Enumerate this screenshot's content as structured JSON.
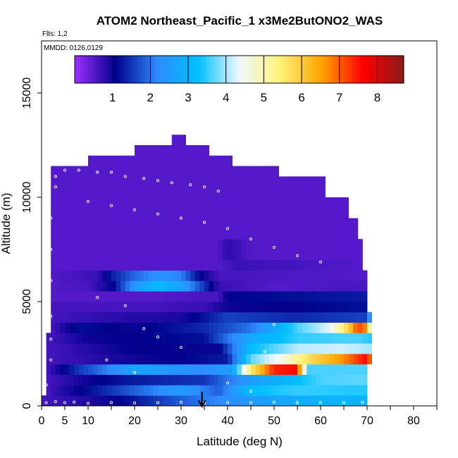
{
  "chart_data": {
    "type": "heatmap",
    "title": "ATOM2 Northeast_Pacific_1 x3Me2ButONO2_WAS",
    "subtitle": "Flts: 1,2",
    "annotation": "MMDD: 0126,0129",
    "xlabel": "Latitude (deg N)",
    "ylabel": "Altitude (m)",
    "xlim": [
      0,
      85
    ],
    "ylim": [
      0,
      17500
    ],
    "x_ticks": [
      0,
      5,
      10,
      20,
      30,
      40,
      50,
      60,
      70,
      80
    ],
    "y_ticks": [
      0,
      5000,
      10000,
      15000
    ],
    "colorbar": {
      "range": [
        0,
        8.7
      ],
      "ticks": [
        1,
        2,
        3,
        4,
        5,
        6,
        7,
        8
      ],
      "placement": "top",
      "colors": [
        "#9b30ff",
        "#00008b",
        "#2e8bff",
        "#00c0ff",
        "#f0f8ff",
        "#fff27a",
        "#ffa500",
        "#ff0000",
        "#8b1a1a"
      ]
    },
    "marker": {
      "x": 34.5,
      "label": "arrow"
    },
    "grid": "off",
    "layers": [
      {
        "ymin": 0,
        "ymax": 500,
        "xmin": 0,
        "xmax": 70,
        "stops": [
          [
            0,
            0.6
          ],
          [
            15,
            1.0
          ],
          [
            30,
            1.8
          ],
          [
            45,
            2.5
          ],
          [
            60,
            3.0
          ],
          [
            70,
            3.0
          ]
        ]
      },
      {
        "ymin": 500,
        "ymax": 1000,
        "xmin": 1,
        "xmax": 70,
        "stops": [
          [
            1,
            0.6
          ],
          [
            15,
            1.5
          ],
          [
            30,
            2.5
          ],
          [
            38,
            1.8
          ],
          [
            45,
            3.2
          ],
          [
            55,
            3.5
          ],
          [
            70,
            3.4
          ]
        ]
      },
      {
        "ymin": 1000,
        "ymax": 1500,
        "xmin": 1,
        "xmax": 70,
        "stops": [
          [
            1,
            0.6
          ],
          [
            10,
            1.0
          ],
          [
            20,
            1.3
          ],
          [
            35,
            1.5
          ],
          [
            45,
            2.5
          ],
          [
            60,
            3.6
          ],
          [
            70,
            3.7
          ]
        ]
      },
      {
        "ymin": 1500,
        "ymax": 2000,
        "xmin": 1,
        "xmax": 70,
        "stops": [
          [
            1,
            0.6
          ],
          [
            8,
            1.5
          ],
          [
            20,
            2.7
          ],
          [
            35,
            2.2
          ],
          [
            41,
            2.6
          ],
          [
            45,
            5.5
          ],
          [
            50,
            7.4
          ],
          [
            55,
            7.6
          ],
          [
            57,
            3.6
          ],
          [
            70,
            3.6
          ]
        ]
      },
      {
        "ymin": 2000,
        "ymax": 2500,
        "xmin": 1,
        "xmax": 71,
        "stops": [
          [
            1,
            0.6
          ],
          [
            15,
            0.9
          ],
          [
            30,
            1.1
          ],
          [
            40,
            1.3
          ],
          [
            45,
            3.7
          ],
          [
            52,
            4.6
          ],
          [
            58,
            5.8
          ],
          [
            65,
            6.7
          ],
          [
            70,
            7.6
          ],
          [
            71,
            6.5
          ]
        ]
      },
      {
        "ymin": 2500,
        "ymax": 3000,
        "xmin": 1,
        "xmax": 71,
        "stops": [
          [
            1,
            0.6
          ],
          [
            20,
            1.1
          ],
          [
            38,
            1.0
          ],
          [
            45,
            3.2
          ],
          [
            55,
            4.1
          ],
          [
            65,
            4.2
          ],
          [
            71,
            4.0
          ]
        ]
      },
      {
        "ymin": 3000,
        "ymax": 3500,
        "xmin": 1,
        "xmax": 71,
        "stops": [
          [
            1,
            0.6
          ],
          [
            10,
            1.0
          ],
          [
            35,
            1.2
          ],
          [
            45,
            2.8
          ],
          [
            55,
            3.5
          ],
          [
            68,
            3.6
          ],
          [
            71,
            3.4
          ]
        ]
      },
      {
        "ymin": 3500,
        "ymax": 4000,
        "xmin": 2,
        "xmax": 71,
        "stops": [
          [
            2,
            0.6
          ],
          [
            8,
            1.2
          ],
          [
            20,
            1.0
          ],
          [
            35,
            1.4
          ],
          [
            45,
            2.0
          ],
          [
            55,
            3.6
          ],
          [
            62,
            4.3
          ],
          [
            66,
            5.9
          ],
          [
            68,
            7.2
          ],
          [
            70,
            6.6
          ],
          [
            71,
            3.6
          ]
        ]
      },
      {
        "ymin": 4000,
        "ymax": 4500,
        "xmin": 2,
        "xmax": 71,
        "stops": [
          [
            2,
            0.6
          ],
          [
            15,
            0.8
          ],
          [
            30,
            0.9
          ],
          [
            40,
            1.6
          ],
          [
            55,
            1.4
          ],
          [
            70,
            1.6
          ],
          [
            71,
            3.0
          ]
        ]
      },
      {
        "ymin": 4500,
        "ymax": 5000,
        "xmin": 2,
        "xmax": 70,
        "stops": [
          [
            2,
            0.6
          ],
          [
            20,
            0.6
          ],
          [
            35,
            0.7
          ],
          [
            40,
            1.0
          ],
          [
            55,
            1.1
          ],
          [
            70,
            1.2
          ]
        ]
      },
      {
        "ymin": 5000,
        "ymax": 5500,
        "xmin": 2,
        "xmax": 70,
        "stops": [
          [
            2,
            0.5
          ],
          [
            25,
            0.5
          ],
          [
            38,
            0.6
          ],
          [
            40,
            1.1
          ],
          [
            55,
            1.2
          ],
          [
            70,
            1.3
          ]
        ]
      },
      {
        "ymin": 5500,
        "ymax": 6000,
        "xmin": 2,
        "xmax": 70,
        "stops": [
          [
            2,
            0.5
          ],
          [
            10,
            0.6
          ],
          [
            15,
            1.0
          ],
          [
            20,
            2.4
          ],
          [
            25,
            3.1
          ],
          [
            30,
            2.6
          ],
          [
            35,
            1.5
          ],
          [
            38,
            0.7
          ],
          [
            50,
            0.5
          ],
          [
            70,
            0.6
          ]
        ]
      },
      {
        "ymin": 6000,
        "ymax": 6500,
        "xmin": 2,
        "xmax": 70,
        "stops": [
          [
            2,
            0.5
          ],
          [
            12,
            0.7
          ],
          [
            15,
            1.3
          ],
          [
            20,
            1.9
          ],
          [
            25,
            2.3
          ],
          [
            30,
            2.1
          ],
          [
            34,
            1.1
          ],
          [
            38,
            0.6
          ],
          [
            70,
            0.5
          ]
        ]
      },
      {
        "ymin": 6500,
        "ymax": 7000,
        "xmin": 2,
        "xmax": 69,
        "stops": [
          [
            2,
            0.5
          ],
          [
            38,
            0.5
          ],
          [
            42,
            0.7
          ],
          [
            69,
            0.5
          ]
        ]
      },
      {
        "ymin": 7000,
        "ymax": 8000,
        "xmin": 2,
        "xmax": 69,
        "stops": [
          [
            2,
            0.5
          ],
          [
            38,
            0.5
          ],
          [
            40,
            0.8
          ],
          [
            45,
            0.5
          ],
          [
            69,
            0.5
          ]
        ]
      },
      {
        "ymin": 8000,
        "ymax": 9000,
        "xmin": 2,
        "xmax": 68,
        "stops": [
          [
            2,
            0.5
          ],
          [
            68,
            0.5
          ]
        ]
      },
      {
        "ymin": 9000,
        "ymax": 10000,
        "xmin": 2,
        "xmax": 66,
        "stops": [
          [
            2,
            0.5
          ],
          [
            66,
            0.5
          ]
        ]
      },
      {
        "ymin": 10000,
        "ymax": 11000,
        "xmin": 2,
        "xmax": 61,
        "stops": [
          [
            2,
            0.5
          ],
          [
            61,
            0.5
          ]
        ]
      },
      {
        "ymin": 11000,
        "ymax": 11500,
        "xmin": 2,
        "xmax": 51,
        "stops": [
          [
            2,
            0.5
          ],
          [
            51,
            0.5
          ]
        ]
      },
      {
        "ymin": 11500,
        "ymax": 12000,
        "xmin": 10,
        "xmax": 41,
        "stops": [
          [
            10,
            0.5
          ],
          [
            41,
            0.5
          ]
        ]
      },
      {
        "ymin": 12000,
        "ymax": 12500,
        "xmin": 20,
        "xmax": 36,
        "stops": [
          [
            20,
            0.5
          ],
          [
            36,
            0.5
          ]
        ]
      },
      {
        "ymin": 12500,
        "ymax": 13000,
        "xmin": 28,
        "xmax": 31,
        "stops": [
          [
            28,
            0.5
          ],
          [
            31,
            0.5
          ]
        ]
      }
    ],
    "samples": [
      [
        1,
        150
      ],
      [
        3,
        200
      ],
      [
        5,
        150
      ],
      [
        7,
        180
      ],
      [
        10,
        120
      ],
      [
        15,
        160
      ],
      [
        20,
        140
      ],
      [
        25,
        150
      ],
      [
        30,
        170
      ],
      [
        35,
        140
      ],
      [
        40,
        160
      ],
      [
        45,
        150
      ],
      [
        50,
        180
      ],
      [
        55,
        150
      ],
      [
        60,
        160
      ],
      [
        65,
        150
      ],
      [
        69,
        170
      ],
      [
        1,
        1000
      ],
      [
        2,
        2200
      ],
      [
        2,
        3200
      ],
      [
        2,
        4300
      ],
      [
        2,
        6000
      ],
      [
        2,
        7500
      ],
      [
        2,
        9000
      ],
      [
        3,
        10500
      ],
      [
        3,
        11000
      ],
      [
        5,
        11300
      ],
      [
        8,
        11300
      ],
      [
        12,
        11200
      ],
      [
        15,
        11200
      ],
      [
        18,
        11000
      ],
      [
        22,
        10900
      ],
      [
        25,
        10800
      ],
      [
        28,
        10700
      ],
      [
        32,
        10600
      ],
      [
        35,
        10500
      ],
      [
        38,
        10300
      ],
      [
        10,
        9800
      ],
      [
        15,
        9600
      ],
      [
        20,
        9400
      ],
      [
        25,
        9200
      ],
      [
        30,
        9000
      ],
      [
        35,
        8800
      ],
      [
        40,
        8500
      ],
      [
        45,
        8000
      ],
      [
        50,
        7600
      ],
      [
        55,
        7200
      ],
      [
        60,
        6900
      ],
      [
        12,
        5200
      ],
      [
        18,
        4800
      ],
      [
        22,
        3700
      ],
      [
        25,
        3300
      ],
      [
        30,
        2800
      ],
      [
        14,
        2200
      ],
      [
        20,
        1600
      ],
      [
        40,
        1100
      ],
      [
        45,
        700
      ],
      [
        48,
        2600
      ],
      [
        50,
        3900
      ]
    ]
  }
}
